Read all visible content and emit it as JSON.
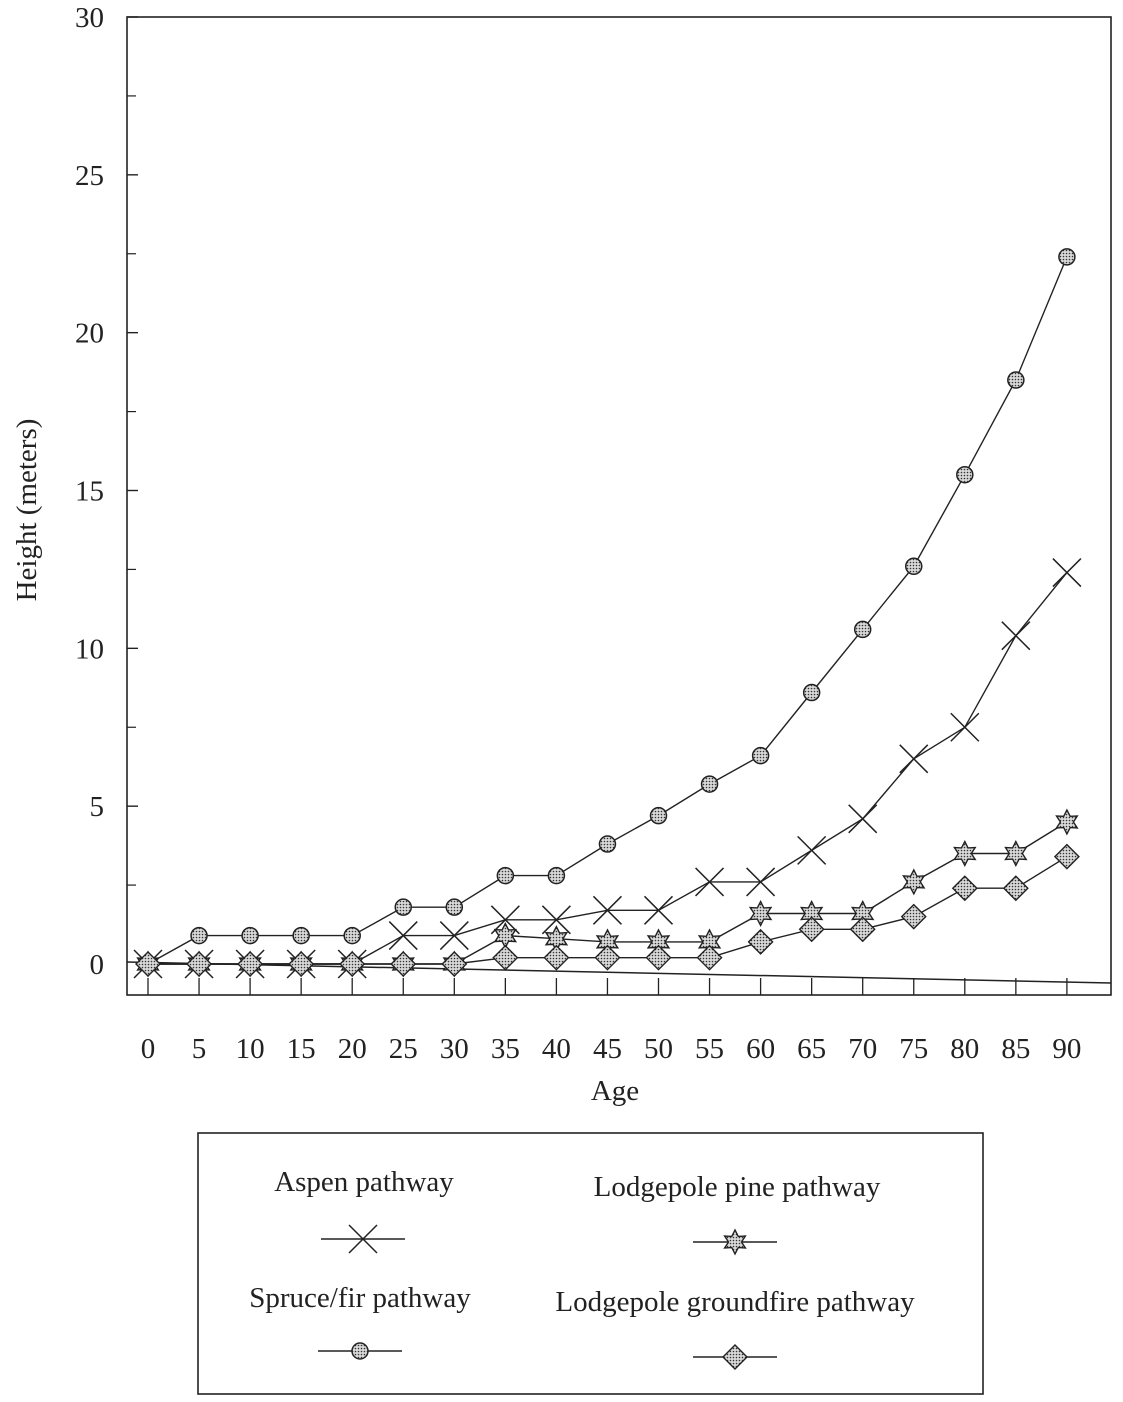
{
  "chart_data": {
    "type": "line",
    "title": "",
    "xlabel": "Age",
    "ylabel": "Height (meters)",
    "x": [
      0,
      5,
      10,
      15,
      20,
      25,
      30,
      35,
      40,
      45,
      50,
      55,
      60,
      65,
      70,
      75,
      80,
      85,
      90
    ],
    "xtick_labels": [
      "0",
      "5",
      "10",
      "15",
      "20",
      "25",
      "30",
      "35",
      "40",
      "45",
      "50",
      "55",
      "60",
      "65",
      "70",
      "75",
      "80",
      "85",
      "90"
    ],
    "ytick_labels": [
      "0",
      "5",
      "10",
      "15",
      "20",
      "25",
      "30"
    ],
    "ylim": [
      0,
      30
    ],
    "grid": false,
    "legend_position": "bottom",
    "series": [
      {
        "name": "Aspen pathway",
        "marker": "x",
        "values": [
          0,
          0,
          0,
          0,
          0,
          0.9,
          0.9,
          1.4,
          1.4,
          1.7,
          1.7,
          2.6,
          2.6,
          3.6,
          4.6,
          6.5,
          7.5,
          10.4,
          12.4
        ]
      },
      {
        "name": "Lodgepole pine pathway",
        "marker": "star",
        "values": [
          0,
          0,
          0,
          0,
          0,
          0,
          0,
          0.9,
          0.8,
          0.7,
          0.7,
          0.7,
          1.6,
          1.6,
          1.6,
          2.6,
          3.5,
          3.5,
          4.5
        ]
      },
      {
        "name": "Spruce/fir pathway",
        "marker": "dotted-circle",
        "values": [
          0,
          0.9,
          0.9,
          0.9,
          0.9,
          1.8,
          1.8,
          2.8,
          2.8,
          3.8,
          4.7,
          5.7,
          6.6,
          8.6,
          10.6,
          12.6,
          15.5,
          18.5,
          22.4
        ]
      },
      {
        "name": "Lodgepole groundfire pathway",
        "marker": "diamond",
        "values": [
          0,
          0,
          0,
          0,
          0,
          0,
          0,
          0.2,
          0.2,
          0.2,
          0.2,
          0.2,
          0.7,
          1.1,
          1.1,
          1.5,
          2.4,
          2.4,
          3.4
        ]
      }
    ]
  }
}
